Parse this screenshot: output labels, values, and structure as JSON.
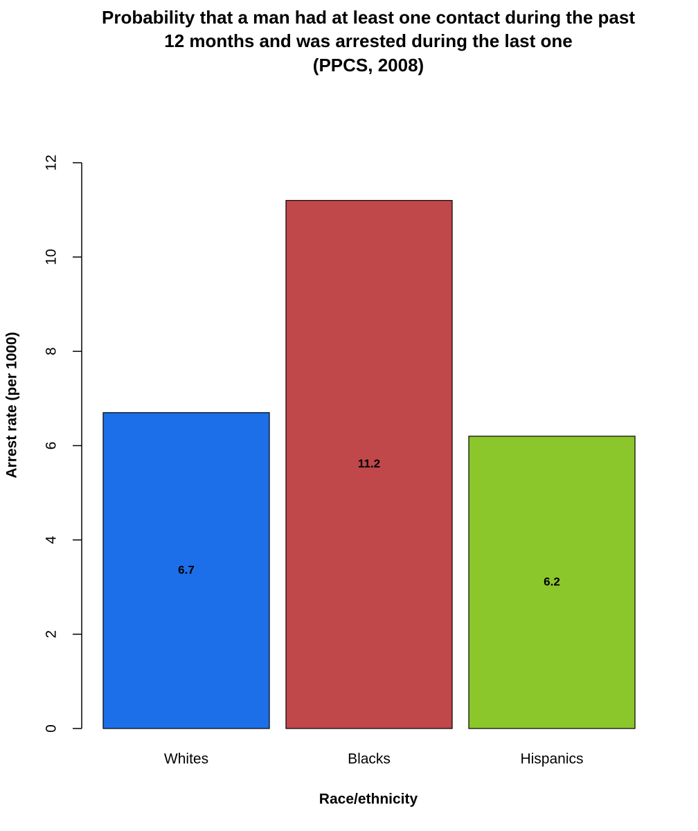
{
  "chart_data": {
    "type": "bar",
    "title": [
      "Probability that a man had at least one contact during the past",
      "12 months and was arrested during the last one",
      "(PPCS, 2008)"
    ],
    "x_label": "Race/ethnicity",
    "y_label": "Arrest rate (per 1000)",
    "categories": [
      "Whites",
      "Blacks",
      "Hispanics"
    ],
    "values": [
      6.7,
      11.2,
      6.2
    ],
    "colors": [
      "#1c6fe8",
      "#c0474a",
      "#8bc62a"
    ],
    "ylim": [
      0,
      12
    ],
    "yticks": [
      0,
      2,
      4,
      6,
      8,
      10,
      12
    ],
    "grid": false
  }
}
